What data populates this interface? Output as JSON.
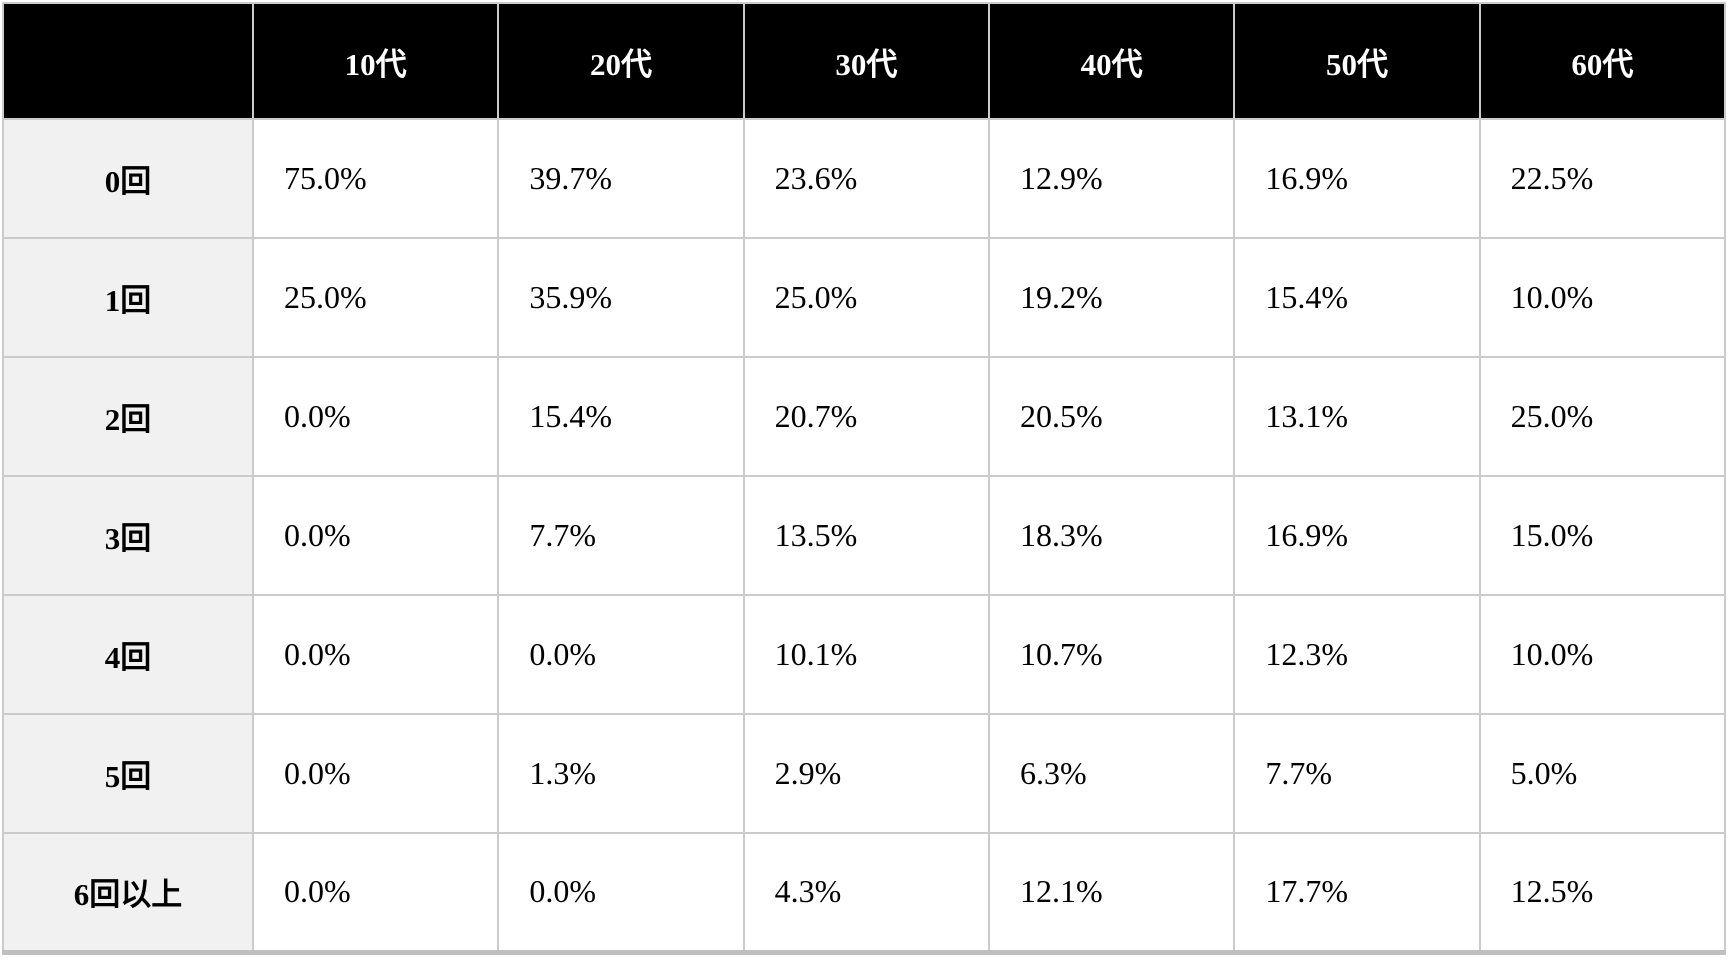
{
  "chart_data": {
    "type": "table",
    "title": "",
    "corner_label": "",
    "columns": [
      "10代",
      "20代",
      "30代",
      "40代",
      "50代",
      "60代"
    ],
    "row_labels": [
      "0回",
      "1回",
      "2回",
      "3回",
      "4回",
      "5回",
      "6回以上"
    ],
    "rows": [
      [
        "75.0%",
        "39.7%",
        "23.6%",
        "12.9%",
        "16.9%",
        "22.5%"
      ],
      [
        "25.0%",
        "35.9%",
        "25.0%",
        "19.2%",
        "15.4%",
        "10.0%"
      ],
      [
        "0.0%",
        "15.4%",
        "20.7%",
        "20.5%",
        "13.1%",
        "25.0%"
      ],
      [
        "0.0%",
        "7.7%",
        "13.5%",
        "18.3%",
        "16.9%",
        "15.0%"
      ],
      [
        "0.0%",
        "0.0%",
        "10.1%",
        "10.7%",
        "12.3%",
        "10.0%"
      ],
      [
        "0.0%",
        "1.3%",
        "2.9%",
        "6.3%",
        "7.7%",
        "5.0%"
      ],
      [
        "0.0%",
        "0.0%",
        "4.3%",
        "12.1%",
        "17.7%",
        "12.5%"
      ]
    ],
    "layout": {
      "header_background": "#000000",
      "header_text_color": "#ffffff",
      "row_label_background": "#f1f1f1",
      "border_color": "#cbcbcb",
      "cell_background": "#ffffff",
      "value_alignment": "left",
      "grid": true
    }
  }
}
